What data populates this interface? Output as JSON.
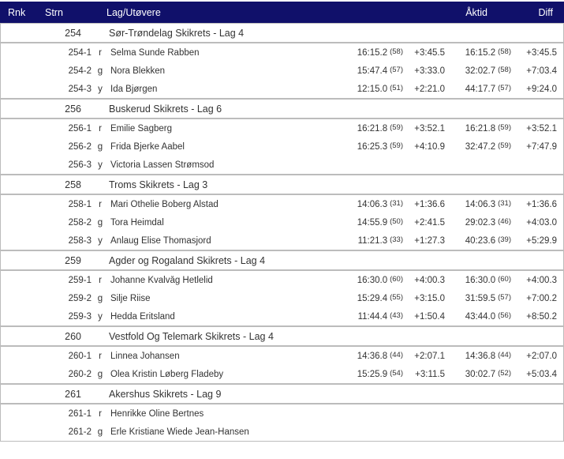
{
  "header": {
    "rnk": "Rnk",
    "strn": "Strn",
    "lag": "Lag/Utøvere",
    "aktid": "Åktid",
    "diff": "Diff"
  },
  "colors": {
    "header_bg": "#10106a",
    "header_text": "#ffffff",
    "text": "#333333",
    "border": "#bcbcbc"
  },
  "teams": [
    {
      "strn": "254",
      "name": "Sør-Trøndelag Skikrets - Lag 4",
      "legs": [
        {
          "bib": "254-1",
          "letter": "r",
          "name": "Selma Sunde Rabben",
          "leg_time": "16:15.2",
          "leg_rank": "(58)",
          "leg_diff": "+3:45.5",
          "total_time": "16:15.2",
          "total_rank": "(58)",
          "total_diff": "+3:45.5"
        },
        {
          "bib": "254-2",
          "letter": "g",
          "name": "Nora Blekken",
          "leg_time": "15:47.4",
          "leg_rank": "(57)",
          "leg_diff": "+3:33.0",
          "total_time": "32:02.7",
          "total_rank": "(58)",
          "total_diff": "+7:03.4"
        },
        {
          "bib": "254-3",
          "letter": "y",
          "name": "Ida Bjørgen",
          "leg_time": "12:15.0",
          "leg_rank": "(51)",
          "leg_diff": "+2:21.0",
          "total_time": "44:17.7",
          "total_rank": "(57)",
          "total_diff": "+9:24.0"
        }
      ]
    },
    {
      "strn": "256",
      "name": "Buskerud Skikrets - Lag 6",
      "legs": [
        {
          "bib": "256-1",
          "letter": "r",
          "name": "Emilie Sagberg",
          "leg_time": "16:21.8",
          "leg_rank": "(59)",
          "leg_diff": "+3:52.1",
          "total_time": "16:21.8",
          "total_rank": "(59)",
          "total_diff": "+3:52.1"
        },
        {
          "bib": "256-2",
          "letter": "g",
          "name": "Frida Bjerke Aabel",
          "leg_time": "16:25.3",
          "leg_rank": "(59)",
          "leg_diff": "+4:10.9",
          "total_time": "32:47.2",
          "total_rank": "(59)",
          "total_diff": "+7:47.9"
        },
        {
          "bib": "256-3",
          "letter": "y",
          "name": "Victoria Lassen Strømsod",
          "leg_time": "",
          "leg_rank": "",
          "leg_diff": "",
          "total_time": "",
          "total_rank": "",
          "total_diff": ""
        }
      ]
    },
    {
      "strn": "258",
      "name": "Troms Skikrets - Lag 3",
      "legs": [
        {
          "bib": "258-1",
          "letter": "r",
          "name": "Mari Othelie Boberg Alstad",
          "leg_time": "14:06.3",
          "leg_rank": "(31)",
          "leg_diff": "+1:36.6",
          "total_time": "14:06.3",
          "total_rank": "(31)",
          "total_diff": "+1:36.6"
        },
        {
          "bib": "258-2",
          "letter": "g",
          "name": "Tora Heimdal",
          "leg_time": "14:55.9",
          "leg_rank": "(50)",
          "leg_diff": "+2:41.5",
          "total_time": "29:02.3",
          "total_rank": "(46)",
          "total_diff": "+4:03.0"
        },
        {
          "bib": "258-3",
          "letter": "y",
          "name": "Anlaug Elise Thomasjord",
          "leg_time": "11:21.3",
          "leg_rank": "(33)",
          "leg_diff": "+1:27.3",
          "total_time": "40:23.6",
          "total_rank": "(39)",
          "total_diff": "+5:29.9"
        }
      ]
    },
    {
      "strn": "259",
      "name": "Agder og Rogaland Skikrets - Lag 4",
      "legs": [
        {
          "bib": "259-1",
          "letter": "r",
          "name": "Johanne Kvalvåg Hetlelid",
          "leg_time": "16:30.0",
          "leg_rank": "(60)",
          "leg_diff": "+4:00.3",
          "total_time": "16:30.0",
          "total_rank": "(60)",
          "total_diff": "+4:00.3"
        },
        {
          "bib": "259-2",
          "letter": "g",
          "name": "Silje Riise",
          "leg_time": "15:29.4",
          "leg_rank": "(55)",
          "leg_diff": "+3:15.0",
          "total_time": "31:59.5",
          "total_rank": "(57)",
          "total_diff": "+7:00.2"
        },
        {
          "bib": "259-3",
          "letter": "y",
          "name": "Hedda Eritsland",
          "leg_time": "11:44.4",
          "leg_rank": "(43)",
          "leg_diff": "+1:50.4",
          "total_time": "43:44.0",
          "total_rank": "(56)",
          "total_diff": "+8:50.2"
        }
      ]
    },
    {
      "strn": "260",
      "name": "Vestfold Og Telemark Skikrets - Lag 4",
      "legs": [
        {
          "bib": "260-1",
          "letter": "r",
          "name": "Linnea Johansen",
          "leg_time": "14:36.8",
          "leg_rank": "(44)",
          "leg_diff": "+2:07.1",
          "total_time": "14:36.8",
          "total_rank": "(44)",
          "total_diff": "+2:07.0"
        },
        {
          "bib": "260-2",
          "letter": "g",
          "name": "Olea Kristin Løberg Fladeby",
          "leg_time": "15:25.9",
          "leg_rank": "(54)",
          "leg_diff": "+3:11.5",
          "total_time": "30:02.7",
          "total_rank": "(52)",
          "total_diff": "+5:03.4"
        }
      ]
    },
    {
      "strn": "261",
      "name": "Akershus Skikrets - Lag 9",
      "legs": [
        {
          "bib": "261-1",
          "letter": "r",
          "name": "Henrikke Oline Bertnes",
          "leg_time": "",
          "leg_rank": "",
          "leg_diff": "",
          "total_time": "",
          "total_rank": "",
          "total_diff": ""
        },
        {
          "bib": "261-2",
          "letter": "g",
          "name": "Erle Kristiane Wiede Jean-Hansen",
          "leg_time": "",
          "leg_rank": "",
          "leg_diff": "",
          "total_time": "",
          "total_rank": "",
          "total_diff": ""
        }
      ]
    }
  ]
}
